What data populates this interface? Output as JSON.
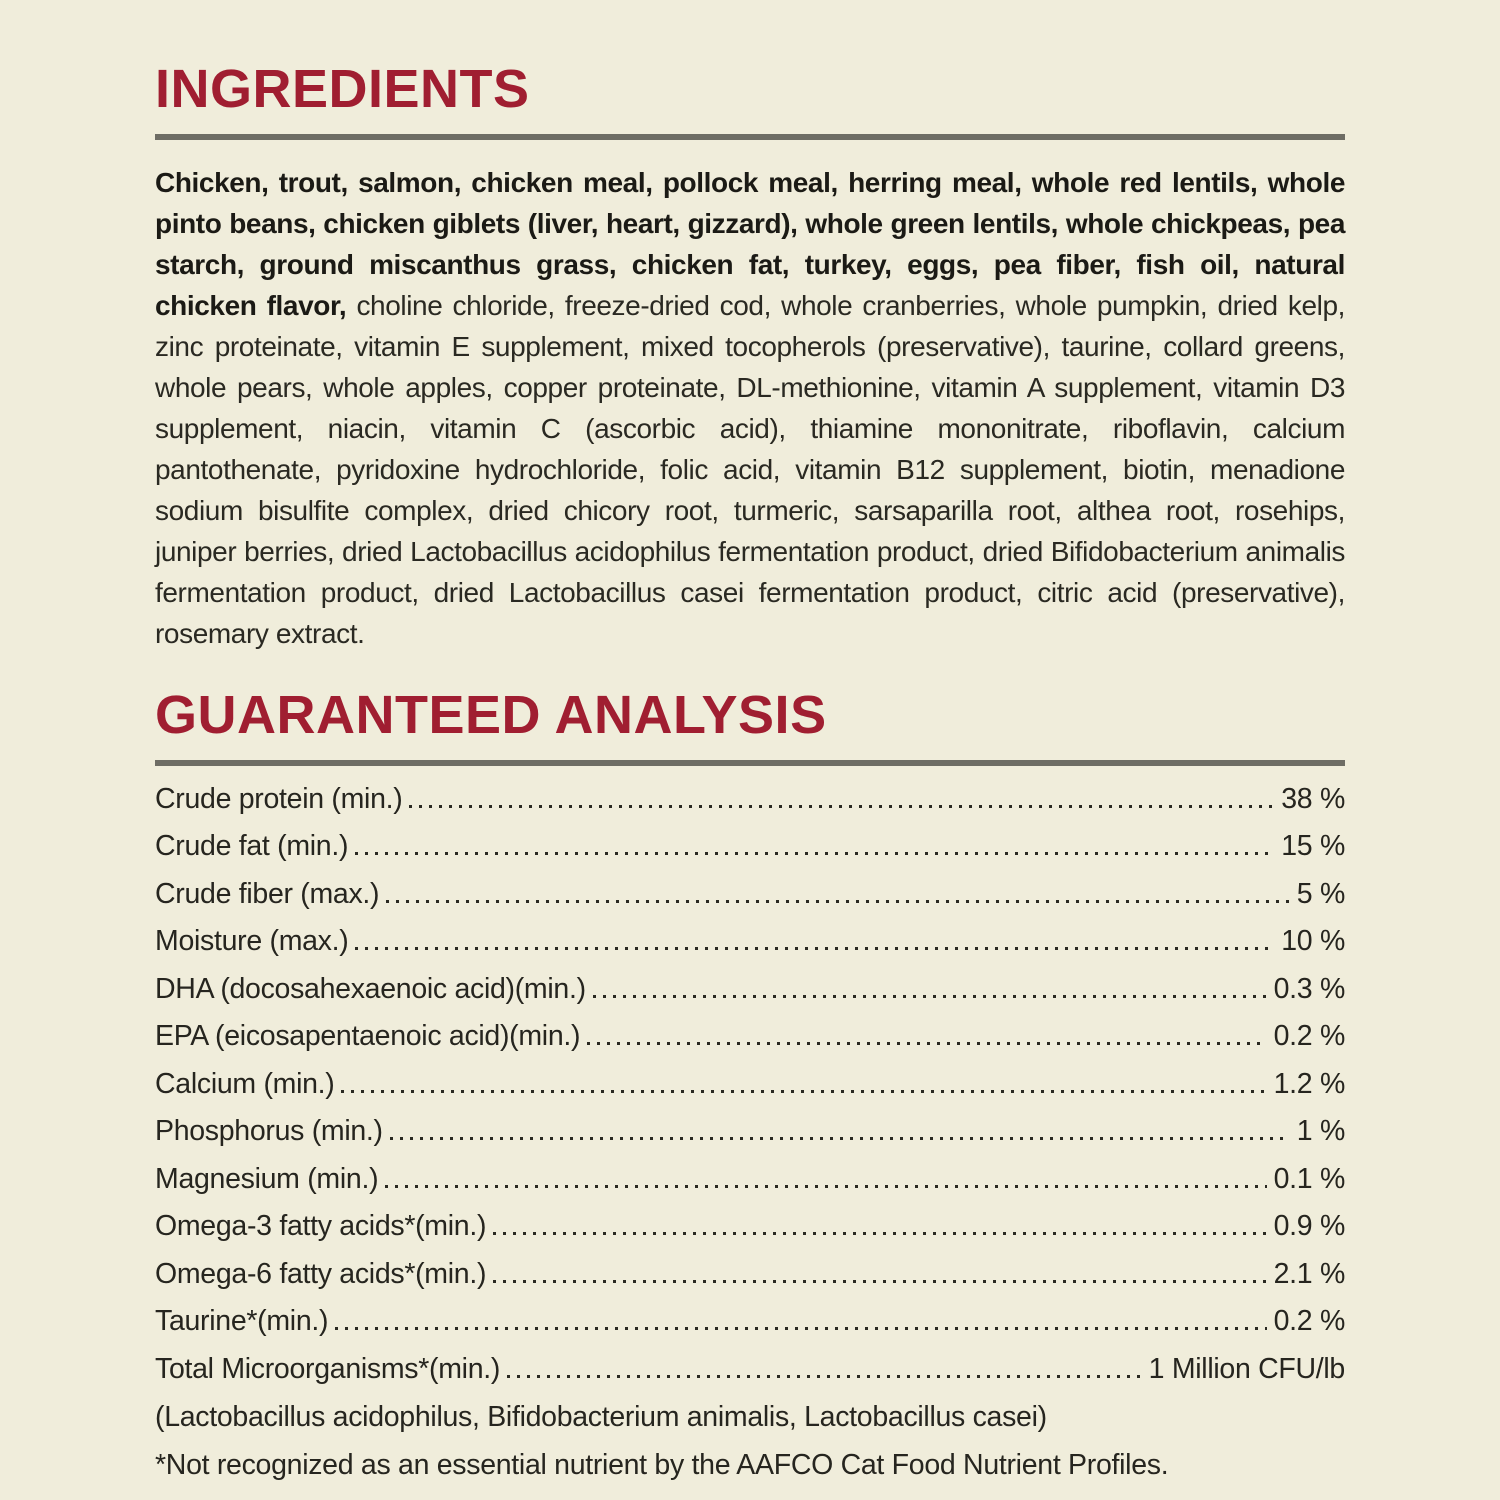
{
  "page": {
    "background_color": "#F0EDDB",
    "accent_color": "#A01E31",
    "rule_color": "#6E6D64",
    "text_color": "#26251F"
  },
  "ingredients": {
    "heading": "INGREDIENTS",
    "bold_text": "Chicken, trout, salmon, chicken meal, pollock meal, herring meal, whole red lentils, whole pinto beans, chicken giblets (liver, heart, gizzard), whole green lentils, whole chickpeas, pea starch, ground miscanthus grass, chicken fat, turkey, eggs, pea fiber, fish oil, natural chicken flavor,",
    "regular_text": " choline chloride, freeze-dried cod, whole cranberries, whole pumpkin, dried kelp, zinc proteinate, vitamin E supplement, mixed tocopherols (preservative), taurine, collard greens, whole pears, whole apples, copper proteinate, DL-methionine, vitamin A supplement, vitamin D3 supplement, niacin, vitamin C (ascorbic acid), thiamine mononitrate, riboflavin, calcium pantothenate, pyridoxine hydrochloride, folic acid, vitamin B12 supplement, biotin, menadione sodium bisulfite complex, dried chicory root, turmeric, sarsaparilla root, althea root, rosehips, juniper berries, dried Lactobacillus acidophilus fermentation product, dried Bifidobacterium animalis fermentation product, dried Lactobacillus casei fermentation product, citric acid (preservative), rosemary extract."
  },
  "guaranteed_analysis": {
    "heading": "GUARANTEED ANALYSIS",
    "rows": [
      {
        "label": "Crude protein (min.)",
        "value": "38 %"
      },
      {
        "label": "Crude fat (min.)",
        "value": "15 %"
      },
      {
        "label": "Crude fiber (max.)",
        "value": "5 %"
      },
      {
        "label": "Moisture (max.)",
        "value": "10 %"
      },
      {
        "label": "DHA (docosahexaenoic acid)(min.)",
        "value": "0.3 %"
      },
      {
        "label": "EPA (eicosapentaenoic acid)(min.)",
        "value": "0.2 %"
      },
      {
        "label": "Calcium (min.)",
        "value": "1.2 %"
      },
      {
        "label": "Phosphorus (min.)",
        "value": "1 %"
      },
      {
        "label": "Magnesium (min.)",
        "value": "0.1 %"
      },
      {
        "label": "Omega-3 fatty acids*(min.)",
        "value": "0.9 %"
      },
      {
        "label": "Omega-6 fatty acids*(min.)",
        "value": "2.1 %"
      },
      {
        "label": "Taurine*(min.)",
        "value": "0.2 %"
      },
      {
        "label": "Total Microorganisms*(min.)",
        "value": "1 Million CFU/lb"
      }
    ],
    "microorganisms_detail": "(Lactobacillus acidophilus, Bifidobacterium animalis, Lactobacillus casei)",
    "footnote": "*Not recognized as an essential nutrient by the AAFCO Cat Food Nutrient Profiles."
  }
}
